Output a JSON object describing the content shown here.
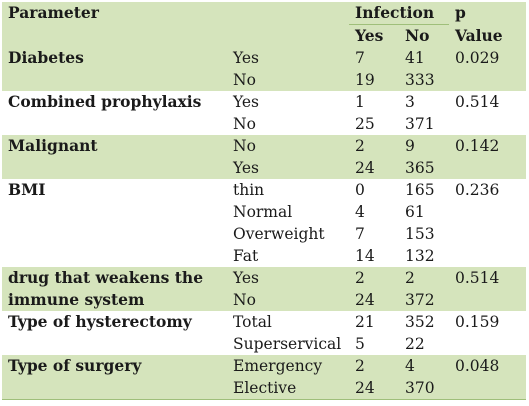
{
  "header": {
    "parameter": "Parameter",
    "infection": "Infection",
    "p_top": "p",
    "yes": "Yes",
    "no": "No",
    "p_bottom": "Value"
  },
  "groups": [
    {
      "name": [
        "Diabetes",
        ""
      ],
      "rows": [
        {
          "category": "Yes",
          "yes": "7",
          "no": "41",
          "p": "0.029"
        },
        {
          "category": "No",
          "yes": "19",
          "no": "333",
          "p": ""
        }
      ]
    },
    {
      "name": [
        "Combined prophylaxis",
        ""
      ],
      "rows": [
        {
          "category": "Yes",
          "yes": "1",
          "no": "3",
          "p": "0.514"
        },
        {
          "category": "No",
          "yes": "25",
          "no": "371",
          "p": ""
        }
      ]
    },
    {
      "name": [
        "Malignant",
        ""
      ],
      "rows": [
        {
          "category": "No",
          "yes": "2",
          "no": "9",
          "p": "0.142"
        },
        {
          "category": "Yes",
          "yes": "24",
          "no": "365",
          "p": ""
        }
      ]
    },
    {
      "name": [
        "BMI",
        "",
        "",
        ""
      ],
      "rows": [
        {
          "category": "thin",
          "yes": "0",
          "no": "165",
          "p": "0.236"
        },
        {
          "category": "Normal",
          "yes": "4",
          "no": "61",
          "p": ""
        },
        {
          "category": "Overweight",
          "yes": "7",
          "no": "153",
          "p": ""
        },
        {
          "category": "Fat",
          "yes": "14",
          "no": "132",
          "p": ""
        }
      ]
    },
    {
      "name": [
        "drug that weakens the",
        "immune system"
      ],
      "rows": [
        {
          "category": "Yes",
          "yes": "2",
          "no": "2",
          "p": "0.514"
        },
        {
          "category": "No",
          "yes": "24",
          "no": "372",
          "p": ""
        }
      ]
    },
    {
      "name": [
        "Type of hysterectomy",
        ""
      ],
      "rows": [
        {
          "category": "Total",
          "yes": "21",
          "no": "352",
          "p": "0.159"
        },
        {
          "category": "Superservical",
          "yes": "5",
          "no": "22",
          "p": ""
        }
      ]
    },
    {
      "name": [
        "Type of surgery",
        ""
      ],
      "rows": [
        {
          "category": "Emergency",
          "yes": "2",
          "no": "4",
          "p": "0.048"
        },
        {
          "category": "Elective",
          "yes": "24",
          "no": "370",
          "p": ""
        }
      ]
    }
  ]
}
